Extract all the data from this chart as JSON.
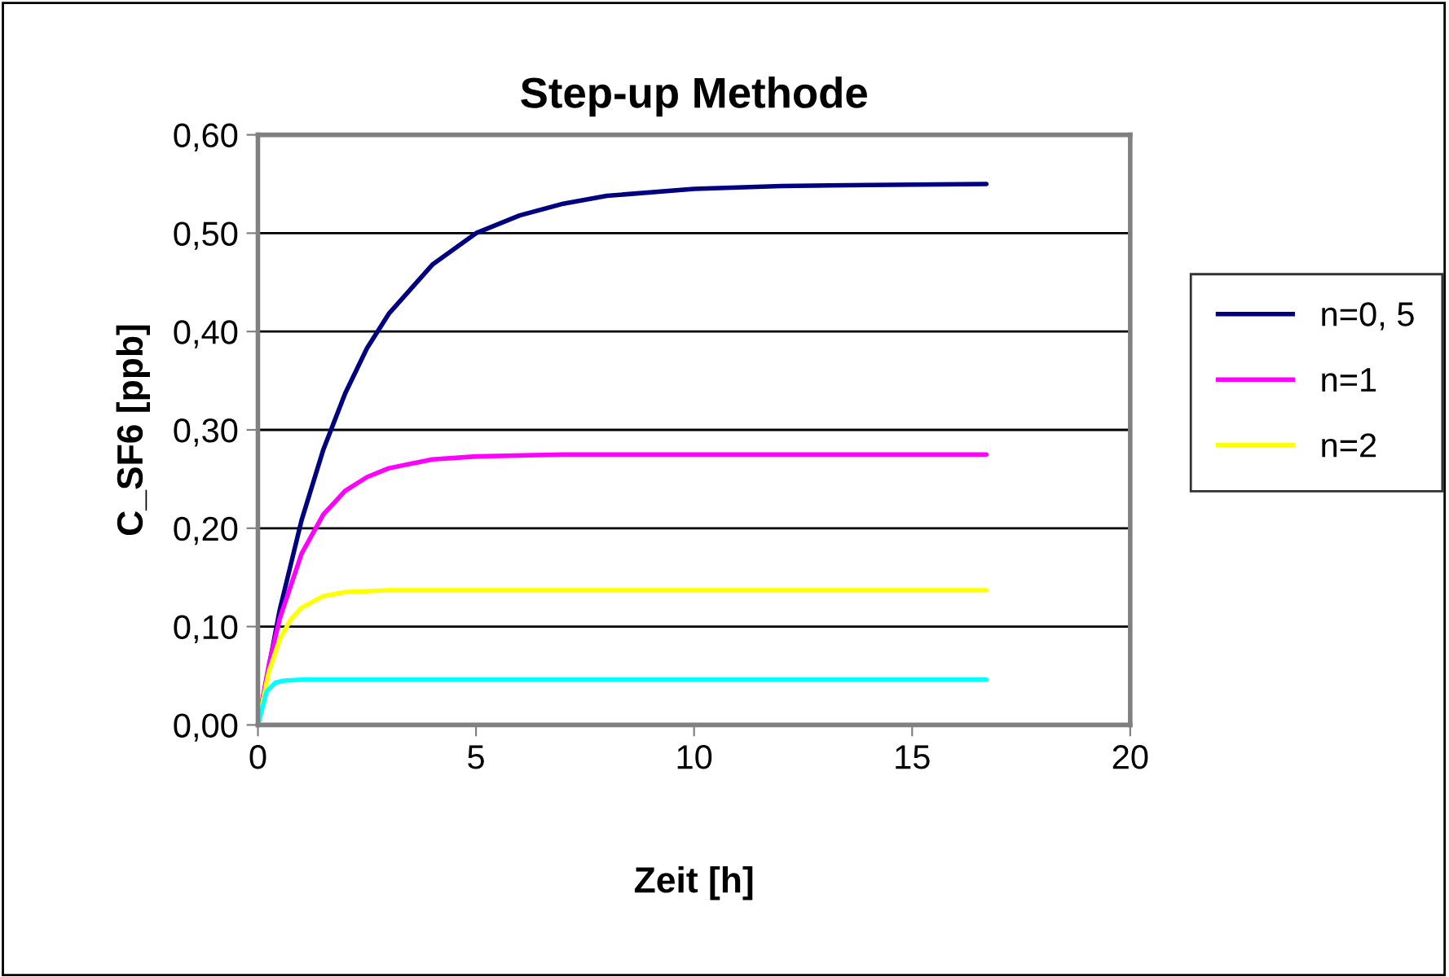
{
  "chart_data": {
    "type": "line",
    "title": "Step-up Methode",
    "xlabel": "Zeit [h]",
    "ylabel": "C_SF6 [ppb]",
    "xlim": [
      0,
      20
    ],
    "xticks": [
      0,
      5,
      10,
      15,
      20
    ],
    "ylim": [
      0,
      0.6
    ],
    "yticks": [
      {
        "value": 0,
        "label": "0,00"
      },
      {
        "value": 0.1,
        "label": "0,10"
      },
      {
        "value": 0.2,
        "label": "0,20"
      },
      {
        "value": 0.3,
        "label": "0,30"
      },
      {
        "value": 0.4,
        "label": "0,40"
      },
      {
        "value": 0.5,
        "label": "0,50"
      },
      {
        "value": 0.6,
        "label": "0,60"
      }
    ],
    "grid": "y",
    "legend": "right",
    "marker": "none",
    "line_style": "solid",
    "series": [
      {
        "name": "n=0, 5",
        "color": "#000080",
        "x": [
          0,
          0.5,
          1,
          1.5,
          2,
          2.5,
          3,
          4,
          5,
          6,
          7,
          8,
          10,
          12,
          14,
          16.7
        ],
        "values": [
          0,
          0.117,
          0.208,
          0.28,
          0.337,
          0.383,
          0.418,
          0.468,
          0.5,
          0.518,
          0.53,
          0.538,
          0.545,
          0.548,
          0.549,
          0.55
        ]
      },
      {
        "name": "n=1",
        "color": "#ff00ff",
        "x": [
          0,
          0.25,
          0.5,
          1,
          1.5,
          2,
          2.5,
          3,
          4,
          5,
          7,
          16.7
        ],
        "values": [
          0,
          0.061,
          0.108,
          0.174,
          0.214,
          0.238,
          0.252,
          0.261,
          0.27,
          0.273,
          0.275,
          0.275
        ]
      },
      {
        "name": "n=2",
        "color": "#ffff00",
        "x": [
          0,
          0.25,
          0.5,
          0.75,
          1,
          1.5,
          2,
          3,
          16.7
        ],
        "values": [
          0,
          0.054,
          0.087,
          0.107,
          0.119,
          0.131,
          0.135,
          0.137,
          0.137
        ]
      },
      {
        "color": "#00ffff",
        "x": [
          0,
          0.2,
          0.4,
          0.6,
          1,
          16.7
        ],
        "values": [
          0,
          0.034,
          0.043,
          0.045,
          0.046,
          0.046
        ]
      }
    ]
  }
}
